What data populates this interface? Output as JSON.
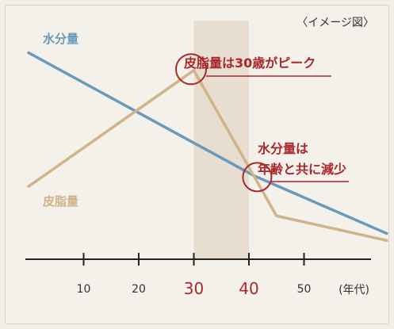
{
  "chart_data": {
    "type": "line",
    "note": "〈イメージ図〉",
    "xlabel": "(年代)",
    "x_ticks": [
      {
        "value": 10,
        "label": "10",
        "highlight": false
      },
      {
        "value": 20,
        "label": "20",
        "highlight": false
      },
      {
        "value": 30,
        "label": "30",
        "highlight": true
      },
      {
        "value": 40,
        "label": "40",
        "highlight": true
      },
      {
        "value": 50,
        "label": "50",
        "highlight": false
      }
    ],
    "xlim": [
      0,
      65
    ],
    "ylim": [
      0,
      100
    ],
    "highlight_band": [
      30,
      40
    ],
    "series": [
      {
        "name": "水分量",
        "color": "#6a9ab9",
        "points": [
          [
            0,
            88
          ],
          [
            41,
            35.5
          ],
          [
            65,
            11
          ]
        ]
      },
      {
        "name": "皮脂量",
        "color": "#cfb489",
        "points": [
          [
            0,
            31
          ],
          [
            30,
            80.5
          ],
          [
            45,
            18.5
          ],
          [
            65,
            8
          ]
        ]
      }
    ],
    "annotations": [
      {
        "text_lines": [
          "皮脂量は30歳がピーク"
        ],
        "at": [
          29.5,
          81
        ],
        "color": "#a8282b"
      },
      {
        "text_lines": [
          "水分量は",
          "年齢と共に減少"
        ],
        "at": [
          41.5,
          35
        ],
        "color": "#a8282b"
      }
    ],
    "colors": {
      "background": "#f3efe8",
      "panel": "#f4f0ea",
      "border": "#d6d1c9",
      "axis": "#222222",
      "band": "#e7ddd1",
      "label_dark": "#333333",
      "label_red": "#a8282b"
    }
  }
}
